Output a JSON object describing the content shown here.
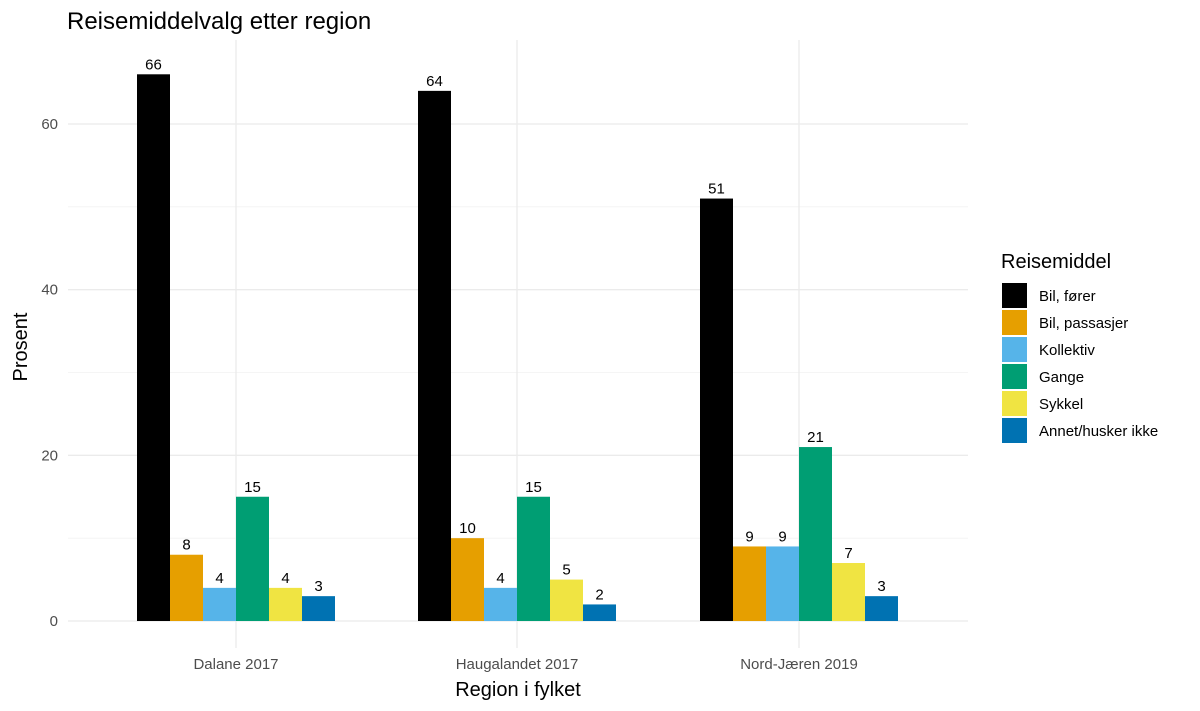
{
  "chart_data": {
    "type": "bar",
    "title": "Reisemiddelvalg etter region",
    "xlabel": "Region i fylket",
    "ylabel": "Prosent",
    "ylim": [
      0,
      67.5
    ],
    "yticks": [
      0,
      20,
      40,
      60
    ],
    "ytick_labels": [
      "0",
      "20",
      "40",
      "60"
    ],
    "grid": true,
    "categories": [
      "Dalane 2017",
      "Haugalandet 2017",
      "Nord-Jæren 2019"
    ],
    "legend": {
      "title": "Reisemiddel",
      "position": "right"
    },
    "series": [
      {
        "name": "Bil, fører",
        "color": "#000000",
        "values": [
          66,
          64,
          51
        ]
      },
      {
        "name": "Bil, passasjer",
        "color": "#E69F00",
        "values": [
          8,
          10,
          9
        ]
      },
      {
        "name": "Kollektiv",
        "color": "#56B4E9",
        "values": [
          4,
          4,
          9
        ]
      },
      {
        "name": "Gange",
        "color": "#009E73",
        "values": [
          15,
          15,
          21
        ]
      },
      {
        "name": "Sykkel",
        "color": "#F0E442",
        "values": [
          4,
          5,
          7
        ]
      },
      {
        "name": "Annet/husker ikke",
        "color": "#0072B2",
        "values": [
          3,
          2,
          3
        ]
      }
    ]
  }
}
